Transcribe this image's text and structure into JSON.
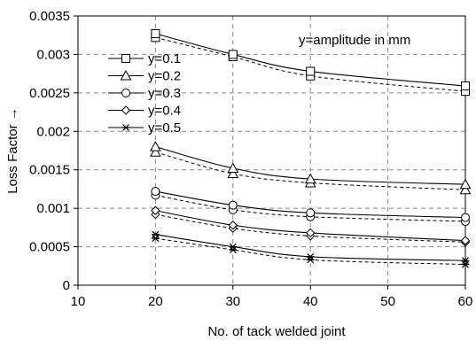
{
  "chart_data": {
    "type": "line",
    "xlabel": "No. of tack welded joint",
    "ylabel": "Loss Factor →",
    "xlim": [
      10,
      60
    ],
    "ylim": [
      0,
      0.0035
    ],
    "x_ticks": [
      "10",
      "20",
      "30",
      "40",
      "50",
      "60"
    ],
    "y_ticks": [
      "0",
      "0.0005",
      "0.001",
      "0.0015",
      "0.002",
      "0.0025",
      "0.003",
      "0.0035"
    ],
    "grid": "dashed",
    "legend_position": "top-left",
    "annotation": "y=amplitude in mm",
    "x": [
      20,
      30,
      40,
      60
    ],
    "series": [
      {
        "name": "y=0.1",
        "marker": "square",
        "values": [
          0.00327,
          0.003,
          0.00278,
          0.00259
        ],
        "values_dashed": [
          0.00322,
          0.00297,
          0.00272,
          0.00252
        ]
      },
      {
        "name": "y=0.2",
        "marker": "triangle",
        "values": [
          0.0018,
          0.00152,
          0.00138,
          0.00131
        ],
        "values_dashed": [
          0.00173,
          0.00145,
          0.00133,
          0.00124
        ]
      },
      {
        "name": "y=0.3",
        "marker": "circle",
        "values": [
          0.00122,
          0.00104,
          0.00094,
          0.00088
        ],
        "values_dashed": [
          0.00117,
          0.00098,
          0.00089,
          0.00083
        ]
      },
      {
        "name": "y=0.4",
        "marker": "diamond",
        "values": [
          0.00097,
          0.00078,
          0.00068,
          0.00058
        ],
        "values_dashed": [
          0.00092,
          0.00074,
          0.00064,
          0.00056
        ]
      },
      {
        "name": "y=0.5",
        "marker": "star",
        "values": [
          0.00066,
          0.0005,
          0.00037,
          0.00032
        ],
        "values_dashed": [
          0.00061,
          0.00046,
          0.00033,
          0.00027
        ]
      }
    ]
  }
}
